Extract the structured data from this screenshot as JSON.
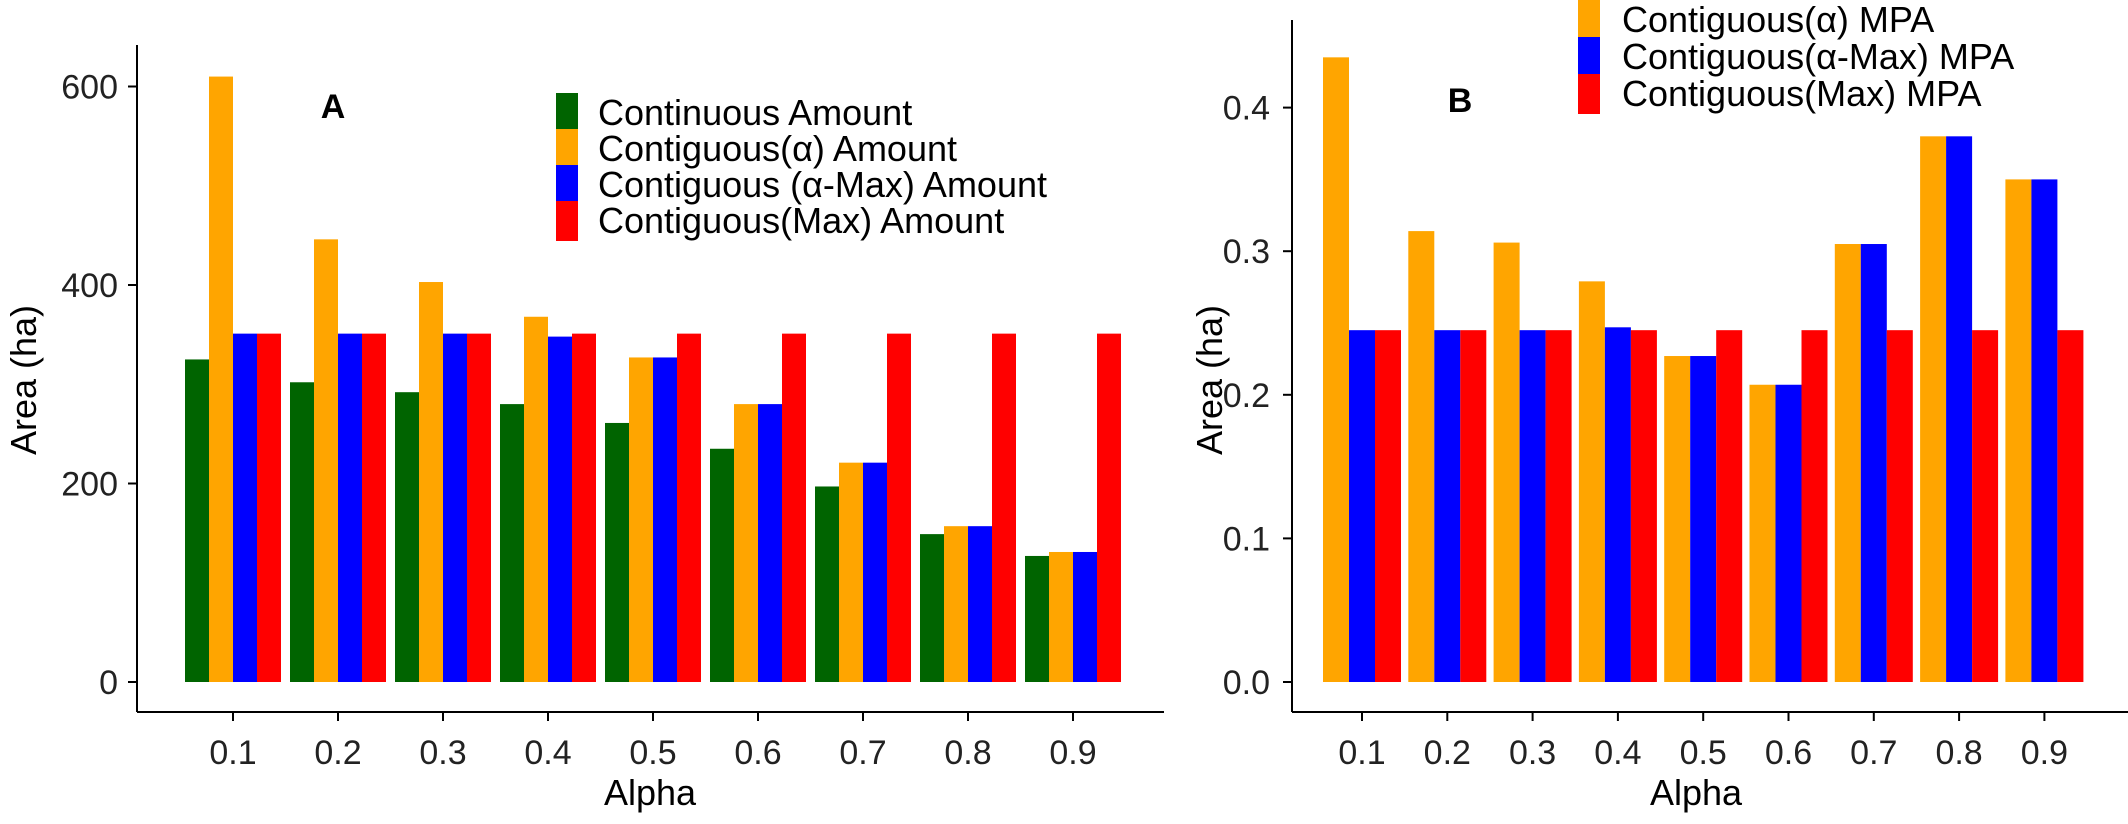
{
  "chart_data": [
    {
      "type": "bar",
      "panel_label": "A",
      "xlabel": "Alpha",
      "ylabel": "Area (ha)",
      "categories": [
        "0.1",
        "0.2",
        "0.3",
        "0.4",
        "0.5",
        "0.6",
        "0.7",
        "0.8",
        "0.9"
      ],
      "ylim": [
        0,
        640
      ],
      "yticks": [
        0,
        200,
        400,
        600
      ],
      "legend_position": "top-right",
      "series": [
        {
          "name": "Continuous Amount",
          "color": "#006400",
          "values": [
            325,
            302,
            292,
            280,
            261,
            235,
            197,
            149,
            127
          ]
        },
        {
          "name": "Contiguous(α) Amount",
          "color": "#FFA500",
          "values": [
            610,
            446,
            403,
            368,
            327,
            280,
            221,
            157,
            131
          ]
        },
        {
          "name": "Contiguous (α-Max) Amount",
          "color": "#0000FF",
          "values": [
            351,
            351,
            351,
            348,
            327,
            280,
            221,
            157,
            131
          ]
        },
        {
          "name": "Contiguous(Max) Amount",
          "color": "#FF0000",
          "values": [
            351,
            351,
            351,
            351,
            351,
            351,
            351,
            351,
            351
          ]
        }
      ]
    },
    {
      "type": "bar",
      "panel_label": "B",
      "xlabel": "Alpha",
      "ylabel": "Area (ha)",
      "categories": [
        "0.1",
        "0.2",
        "0.3",
        "0.4",
        "0.5",
        "0.6",
        "0.7",
        "0.8",
        "0.9"
      ],
      "ylim": [
        0,
        0.45
      ],
      "yticks": [
        "0.0",
        "0.1",
        "0.2",
        "0.3",
        "0.4"
      ],
      "legend_position": "top-right",
      "series": [
        {
          "name": "Contiguous(α) MPA",
          "color": "#FFA500",
          "values": [
            0.435,
            0.314,
            0.306,
            0.279,
            0.227,
            0.207,
            0.305,
            0.38,
            0.35
          ]
        },
        {
          "name": "Contiguous(α-Max) MPA",
          "color": "#0000FF",
          "values": [
            0.245,
            0.245,
            0.245,
            0.247,
            0.227,
            0.207,
            0.305,
            0.38,
            0.35
          ]
        },
        {
          "name": "Contiguous(Max) MPA",
          "color": "#FF0000",
          "values": [
            0.245,
            0.245,
            0.245,
            0.245,
            0.245,
            0.245,
            0.245,
            0.245,
            0.245
          ]
        }
      ]
    }
  ]
}
